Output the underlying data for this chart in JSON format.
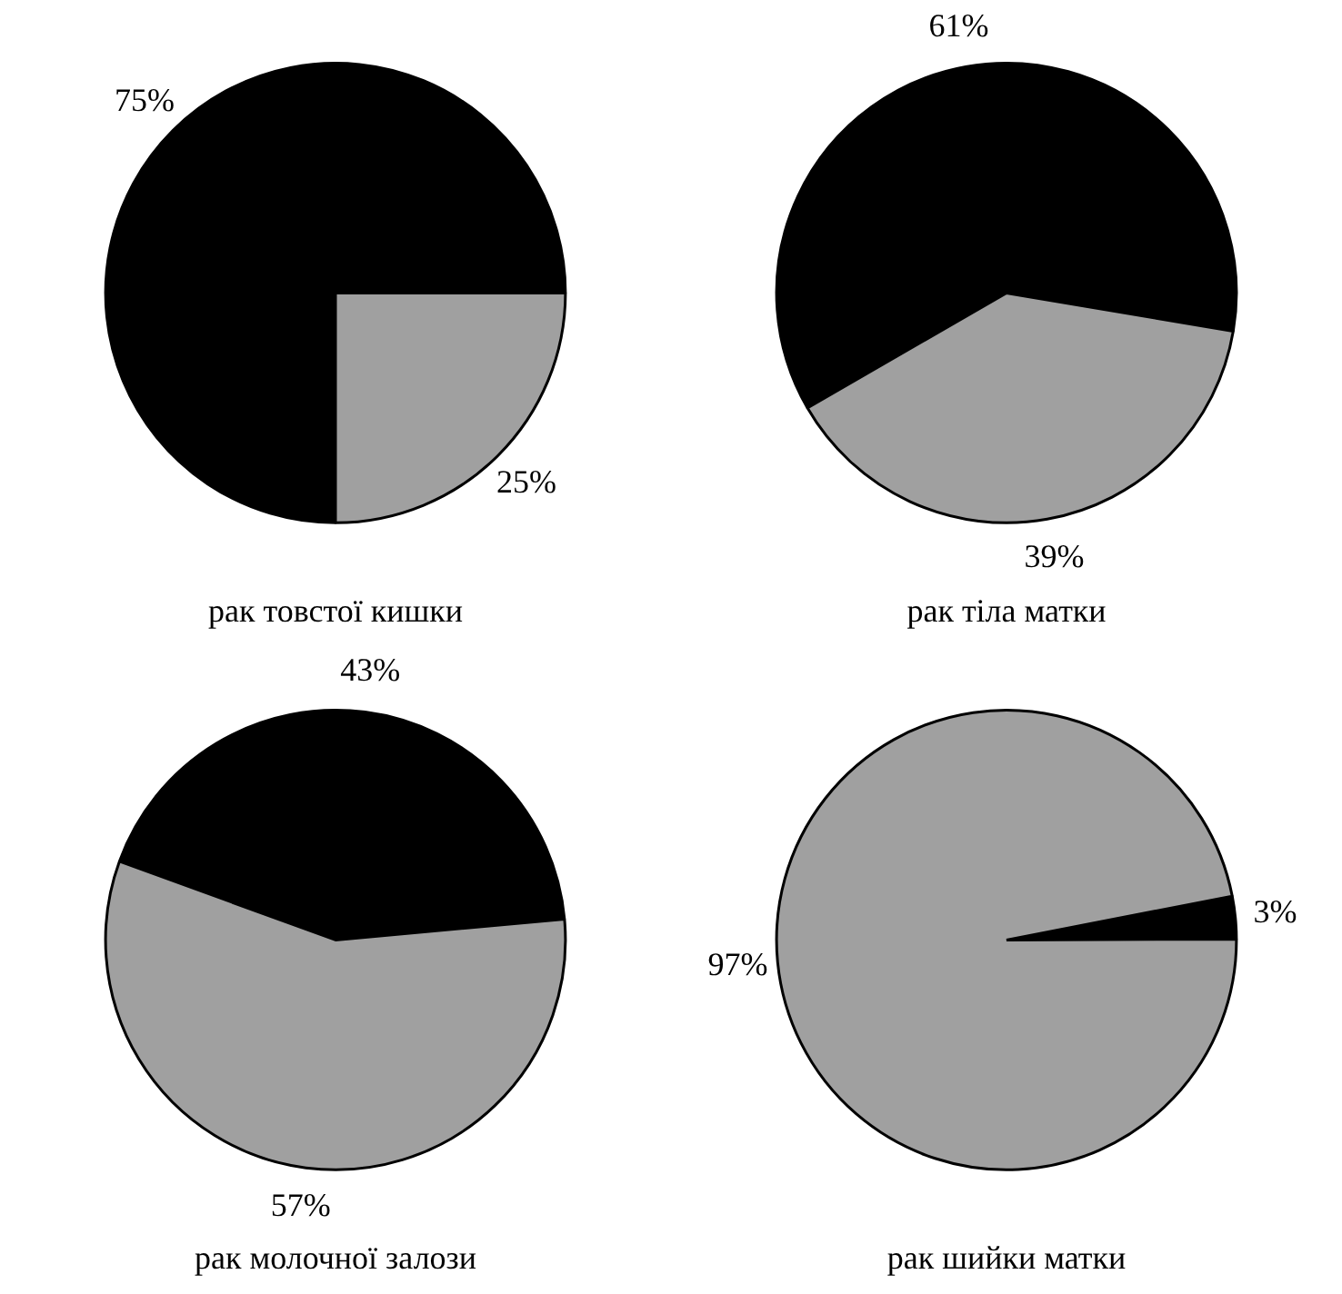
{
  "chart_data": [
    {
      "type": "pie",
      "title": "рак товстої кишки",
      "categories": [
        null,
        null
      ],
      "values": [
        75,
        25
      ],
      "colors": [
        "#000000",
        "#a0a0a0"
      ],
      "value_labels": [
        "75%",
        "25%"
      ]
    },
    {
      "type": "pie",
      "title": "рак тіла матки",
      "categories": [
        null,
        null
      ],
      "values": [
        61,
        39
      ],
      "colors": [
        "#000000",
        "#a0a0a0"
      ],
      "value_labels": [
        "61%",
        "39%"
      ]
    },
    {
      "type": "pie",
      "title": "рак молочної залози",
      "categories": [
        null,
        null
      ],
      "values": [
        43,
        57
      ],
      "colors": [
        "#000000",
        "#a0a0a0"
      ],
      "value_labels": [
        "43%",
        "57%"
      ]
    },
    {
      "type": "pie",
      "title": "рак шийки матки",
      "categories": [
        null,
        null
      ],
      "values": [
        3,
        97
      ],
      "colors": [
        "#000000",
        "#a0a0a0"
      ],
      "value_labels": [
        "3%",
        "97%"
      ]
    }
  ]
}
